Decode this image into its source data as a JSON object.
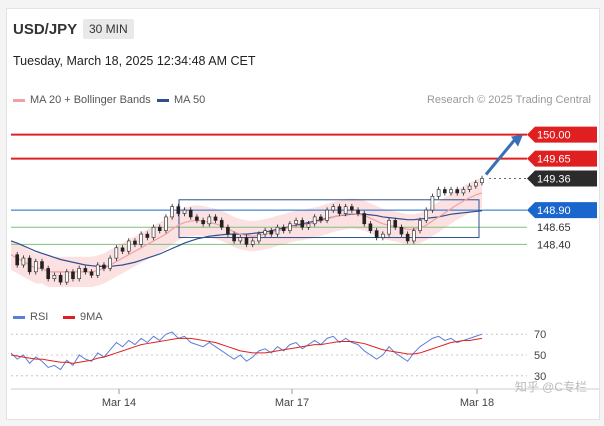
{
  "header": {
    "symbol": "USD/JPY",
    "timeframe": "30 MIN",
    "timestamp": "Tuesday, March 18, 2025 12:34:48 AM CET"
  },
  "legend": {
    "ma20_label": "MA 20 + Bollinger Bands",
    "ma50_label": "MA 50",
    "rsi_label": "RSI",
    "ma9_label": "9MA"
  },
  "credit": "Research © 2025 Trading Central",
  "watermark": "知乎 @C专栏",
  "colors": {
    "resistance": "#e02020",
    "current_price": "#2b2b2b",
    "pivot": "#1a66cc",
    "support": "#7fbf7f",
    "bollinger": "#f7c9c9",
    "ma20": "#f2a0a0",
    "ma50": "#2f4f8f",
    "rsi": "#5b7fd8",
    "rsi_ma9": "#e02020",
    "arrow": "#3a6fb6"
  },
  "chart_data": [
    {
      "type": "line",
      "title": "USD/JPY 30 MIN",
      "x_ticks": [
        "Mar 14",
        "Mar 17",
        "Mar 18"
      ],
      "ylim": [
        147.75,
        150.3
      ],
      "levels": [
        {
          "name": "resistance",
          "value": 150.0,
          "label": "150.00"
        },
        {
          "name": "resistance",
          "value": 149.65,
          "label": "149.65"
        },
        {
          "name": "current",
          "value": 149.36,
          "label": "149.36"
        },
        {
          "name": "pivot",
          "value": 148.9,
          "label": "148.90"
        },
        {
          "name": "support",
          "value": 148.65,
          "label": "148.65"
        },
        {
          "name": "support",
          "value": 148.4,
          "label": "148.40"
        }
      ],
      "series": [
        {
          "name": "USD/JPY",
          "values": [
            148.25,
            148.1,
            148.2,
            148.0,
            148.15,
            148.05,
            147.9,
            147.95,
            147.85,
            148.0,
            147.9,
            148.05,
            148.0,
            147.95,
            148.1,
            148.05,
            148.2,
            148.35,
            148.3,
            148.45,
            148.4,
            148.55,
            148.5,
            148.65,
            148.6,
            148.8,
            148.95,
            148.85,
            148.9,
            148.8,
            148.75,
            148.7,
            148.8,
            148.75,
            148.65,
            148.55,
            148.45,
            148.5,
            148.4,
            148.45,
            148.55,
            148.6,
            148.55,
            148.65,
            148.6,
            148.7,
            148.75,
            148.65,
            148.7,
            148.8,
            148.75,
            148.9,
            148.95,
            148.85,
            148.95,
            148.9,
            148.85,
            148.7,
            148.6,
            148.5,
            148.55,
            148.75,
            148.65,
            148.55,
            148.45,
            148.6,
            148.75,
            148.9,
            149.1,
            149.2,
            149.15,
            149.2,
            149.15,
            149.2,
            149.25,
            149.3,
            149.36
          ]
        },
        {
          "name": "MA 20",
          "values": [
            148.25,
            148.2,
            148.15,
            148.1,
            148.05,
            148.05,
            148.0,
            148.0,
            148.0,
            148.0,
            148.0,
            148.0,
            148.0,
            148.0,
            148.02,
            148.05,
            148.1,
            148.15,
            148.2,
            148.25,
            148.3,
            148.35,
            148.4,
            148.45,
            148.5,
            148.55,
            148.62,
            148.68,
            148.72,
            148.74,
            148.75,
            148.74,
            148.72,
            148.7,
            148.67,
            148.63,
            148.58,
            148.55,
            148.53,
            148.52,
            148.53,
            148.55,
            148.57,
            148.6,
            148.62,
            148.65,
            148.67,
            148.68,
            148.7,
            148.72,
            148.74,
            148.77,
            148.8,
            148.82,
            148.84,
            148.85,
            148.84,
            148.82,
            148.78,
            148.74,
            148.7,
            148.68,
            148.66,
            148.64,
            148.62,
            148.62,
            148.64,
            148.68,
            148.74,
            148.8,
            148.86,
            148.92,
            148.98,
            149.03,
            149.08,
            149.12,
            149.15
          ]
        },
        {
          "name": "MA 50",
          "values": [
            148.45,
            148.42,
            148.38,
            148.34,
            148.3,
            148.27,
            148.24,
            148.21,
            148.18,
            148.16,
            148.14,
            148.12,
            148.1,
            148.09,
            148.08,
            148.08,
            148.08,
            148.09,
            148.1,
            148.12,
            148.14,
            148.17,
            148.2,
            148.23,
            148.26,
            148.3,
            148.34,
            148.38,
            148.42,
            148.45,
            148.48,
            148.5,
            148.52,
            148.53,
            148.54,
            148.55,
            148.55,
            148.55,
            148.55,
            148.56,
            148.57,
            148.58,
            148.6,
            148.62,
            148.64,
            148.66,
            148.68,
            148.7,
            148.72,
            148.74,
            148.76,
            148.78,
            148.8,
            148.82,
            148.83,
            148.84,
            148.84,
            148.84,
            148.83,
            148.82,
            148.8,
            148.79,
            148.78,
            148.77,
            148.76,
            148.76,
            148.77,
            148.78,
            148.79,
            148.8,
            148.82,
            148.84,
            148.85,
            148.86,
            148.87,
            148.88,
            148.89
          ]
        }
      ]
    },
    {
      "type": "line",
      "title": "RSI",
      "ylim": [
        25,
        75
      ],
      "y_ticks": [
        70,
        50,
        30
      ],
      "series": [
        {
          "name": "RSI",
          "values": [
            52,
            46,
            50,
            42,
            48,
            44,
            38,
            40,
            36,
            45,
            40,
            50,
            46,
            44,
            52,
            48,
            55,
            62,
            58,
            64,
            60,
            66,
            62,
            68,
            64,
            70,
            72,
            66,
            68,
            62,
            60,
            58,
            62,
            58,
            54,
            50,
            46,
            50,
            44,
            48,
            54,
            56,
            52,
            58,
            54,
            60,
            62,
            56,
            60,
            64,
            60,
            66,
            68,
            62,
            66,
            62,
            60,
            54,
            50,
            46,
            50,
            58,
            52,
            48,
            44,
            52,
            58,
            62,
            66,
            68,
            64,
            66,
            62,
            64,
            66,
            68,
            70
          ]
        },
        {
          "name": "9MA",
          "values": [
            50,
            49,
            48,
            47,
            46,
            46,
            45,
            44,
            43,
            43,
            42,
            43,
            44,
            45,
            47,
            48,
            50,
            52,
            54,
            56,
            58,
            60,
            61,
            62,
            63,
            64,
            65,
            66,
            66,
            66,
            65,
            64,
            63,
            62,
            60,
            58,
            56,
            54,
            53,
            52,
            52,
            52,
            53,
            54,
            55,
            56,
            57,
            58,
            59,
            60,
            60,
            61,
            62,
            63,
            63,
            63,
            62,
            61,
            59,
            57,
            55,
            54,
            53,
            52,
            51,
            51,
            52,
            54,
            56,
            58,
            60,
            62,
            63,
            64,
            64,
            65,
            66
          ]
        }
      ]
    }
  ]
}
